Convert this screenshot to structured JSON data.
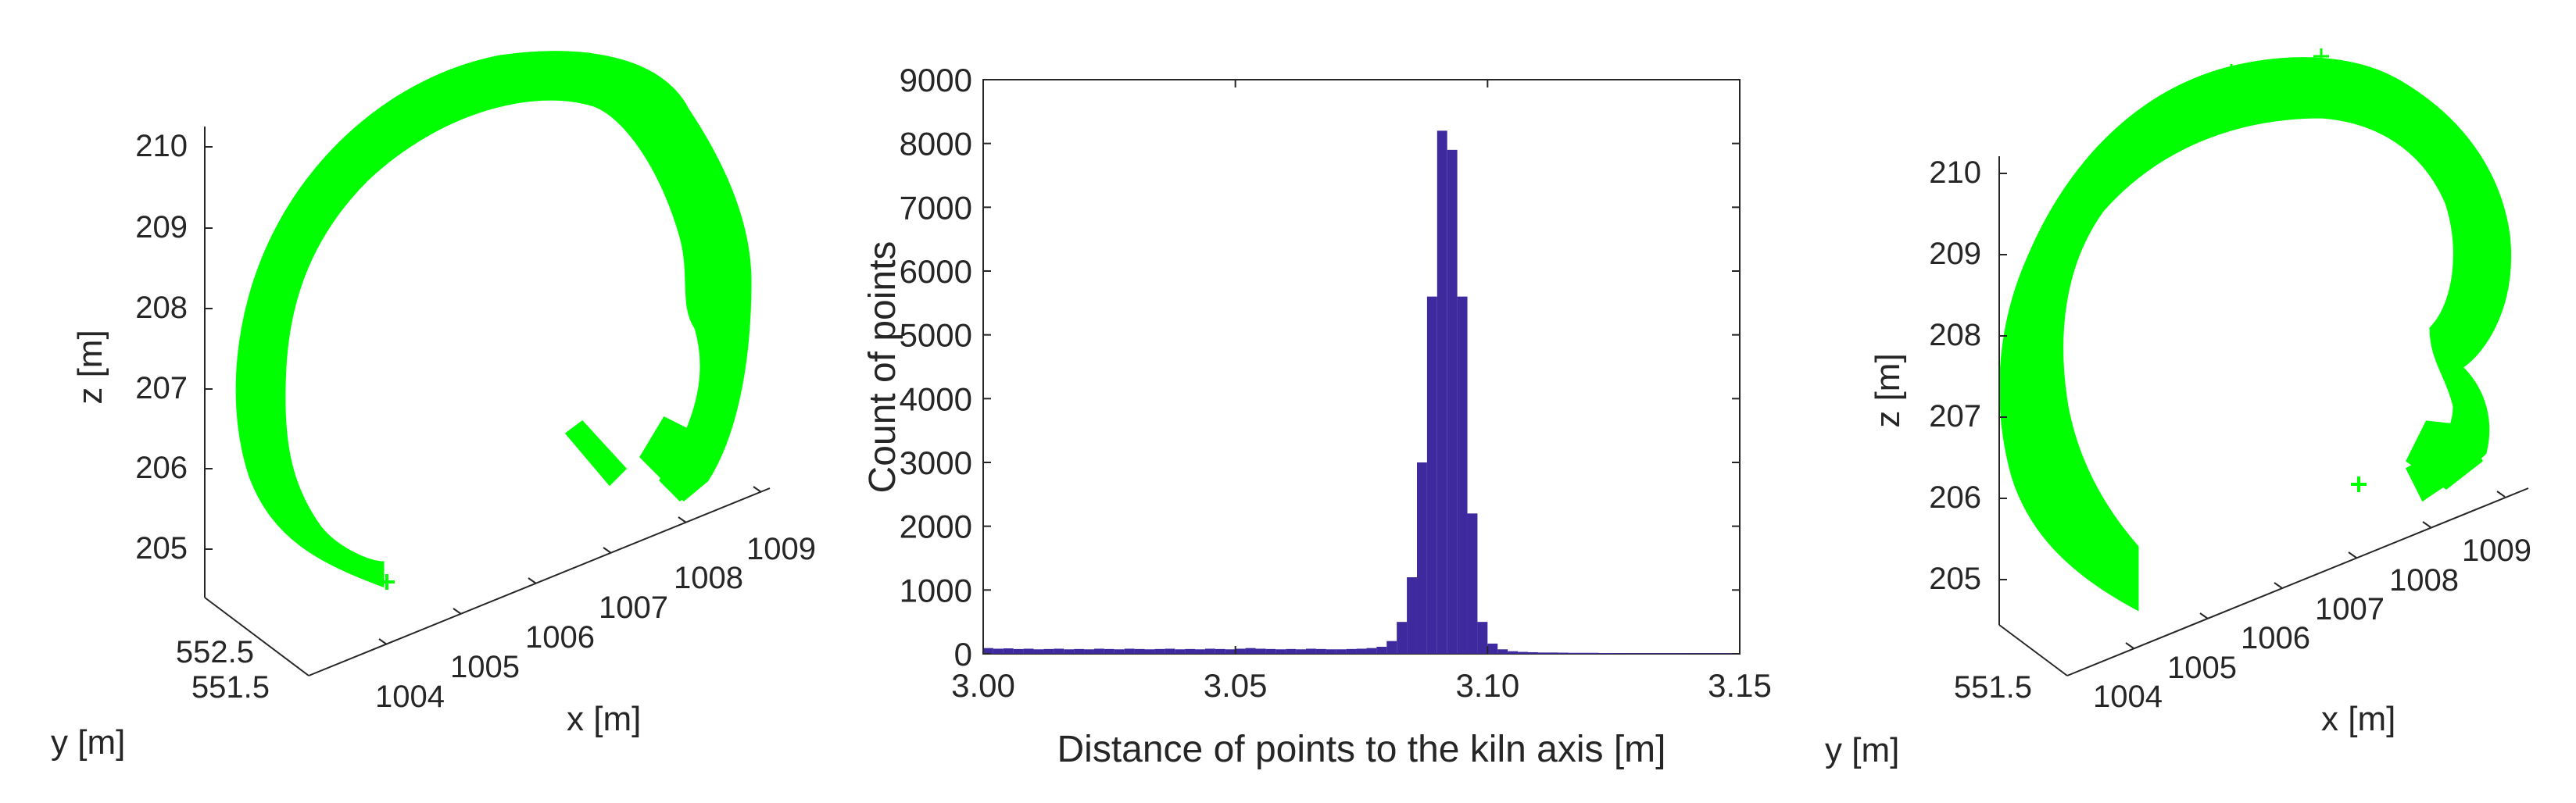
{
  "chart_data": [
    {
      "type": "scatter",
      "projection": "3d",
      "series": [
        {
          "color": "#00ff00",
          "marker": "+"
        }
      ],
      "zlabel": "z [m]",
      "xlabel": "x [m]",
      "ylabel": "y [m]",
      "zticks": [
        "210",
        "209",
        "208",
        "207",
        "206",
        "205"
      ],
      "xticks": [
        "1004",
        "1005",
        "1006",
        "1007",
        "1008",
        "1009"
      ],
      "yticks": [
        "552.5",
        "551.5"
      ]
    },
    {
      "type": "bar",
      "series": [
        {
          "color": "#3e2a9e"
        }
      ],
      "xlabel": "Distance of points to the kiln axis [m]",
      "ylabel": "Count of points",
      "xlim": [
        3.0,
        3.15
      ],
      "ylim": [
        0,
        9000
      ],
      "xticks": [
        "3.00",
        "3.05",
        "3.10",
        "3.15"
      ],
      "yticks": [
        "0",
        "1000",
        "2000",
        "3000",
        "4000",
        "5000",
        "6000",
        "7000",
        "8000",
        "9000"
      ],
      "grid": false,
      "bins": {
        "x": [
          3.0,
          3.002,
          3.004,
          3.006,
          3.008,
          3.01,
          3.012,
          3.014,
          3.016,
          3.018,
          3.02,
          3.022,
          3.024,
          3.026,
          3.028,
          3.03,
          3.032,
          3.034,
          3.036,
          3.038,
          3.04,
          3.042,
          3.044,
          3.046,
          3.048,
          3.05,
          3.052,
          3.054,
          3.056,
          3.058,
          3.06,
          3.062,
          3.064,
          3.066,
          3.068,
          3.07,
          3.072,
          3.074,
          3.076,
          3.078,
          3.08,
          3.082,
          3.084,
          3.086,
          3.088,
          3.09,
          3.092,
          3.094,
          3.096,
          3.098,
          3.1,
          3.102,
          3.104,
          3.106,
          3.108,
          3.11,
          3.112,
          3.114,
          3.116,
          3.118,
          3.12,
          3.122,
          3.124,
          3.126,
          3.128,
          3.13,
          3.132,
          3.134,
          3.136,
          3.138,
          3.14,
          3.142,
          3.144,
          3.146,
          3.148
        ],
        "values": [
          90,
          80,
          85,
          75,
          80,
          70,
          75,
          80,
          70,
          75,
          70,
          80,
          75,
          70,
          80,
          75,
          70,
          75,
          80,
          70,
          75,
          70,
          80,
          75,
          70,
          80,
          90,
          80,
          75,
          70,
          75,
          70,
          80,
          75,
          70,
          70,
          75,
          80,
          90,
          110,
          200,
          500,
          1200,
          3000,
          5600,
          8200,
          7900,
          5600,
          2200,
          500,
          160,
          70,
          40,
          30,
          25,
          20,
          20,
          18,
          15,
          15,
          15,
          12,
          12,
          10,
          10,
          10,
          10,
          10,
          10,
          8,
          8,
          8,
          8,
          8,
          8
        ]
      }
    },
    {
      "type": "scatter",
      "projection": "3d",
      "series": [
        {
          "color": "#00ff00",
          "marker": "+"
        }
      ],
      "zlabel": "z [m]",
      "xlabel": "x [m]",
      "ylabel": "y [m]",
      "zticks": [
        "210",
        "209",
        "208",
        "207",
        "206",
        "205"
      ],
      "xticks": [
        "1004",
        "1005",
        "1006",
        "1007",
        "1008",
        "1009"
      ],
      "yticks": [
        "551.5"
      ]
    }
  ]
}
